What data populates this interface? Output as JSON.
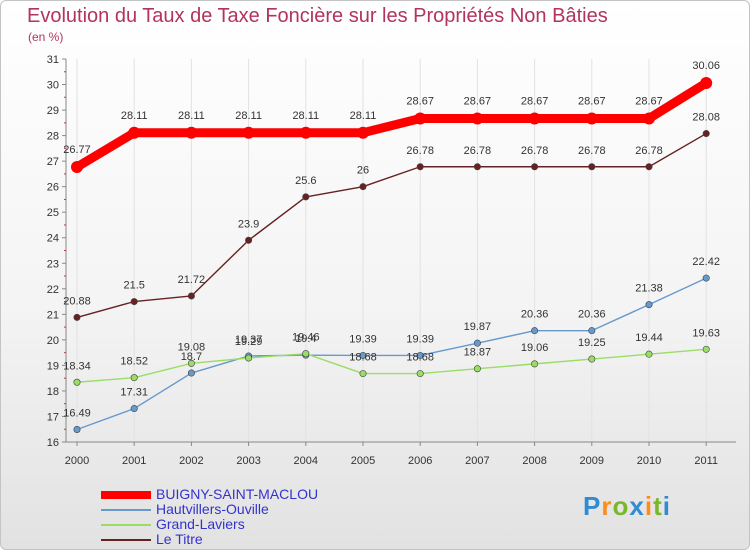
{
  "header": {
    "title": "Evolution du Taux de Taxe Foncière sur les Propriétés Non Bâties",
    "unit_label": "(en %)"
  },
  "logo": {
    "text": "Proxiti",
    "letters": [
      {
        "ch": "P",
        "color": "#2e8bd4"
      },
      {
        "ch": "r",
        "color": "#ff8c1a"
      },
      {
        "ch": "o",
        "color": "#7ab829"
      },
      {
        "ch": "x",
        "color": "#2e8bd4"
      },
      {
        "ch": "i",
        "color": "#ff8c1a"
      },
      {
        "ch": "t",
        "color": "#7ab829"
      },
      {
        "ch": "i",
        "color": "#2e8bd4"
      }
    ]
  },
  "chart_data": {
    "type": "line",
    "x": [
      2000,
      2001,
      2002,
      2003,
      2004,
      2005,
      2006,
      2007,
      2008,
      2009,
      2010,
      2011
    ],
    "ylim": [
      16,
      31
    ],
    "yticks": [
      16,
      17,
      18,
      19,
      20,
      21,
      22,
      23,
      24,
      25,
      26,
      27,
      28,
      29,
      30,
      31
    ],
    "grid": "vertical",
    "legend_position": "bottom-left",
    "series": [
      {
        "name": "BUIGNY-SAINT-MACLOU",
        "color": "#ff0000",
        "values": [
          26.77,
          28.11,
          28.11,
          28.11,
          28.11,
          28.11,
          28.67,
          28.67,
          28.67,
          28.67,
          28.67,
          30.06
        ],
        "labels": [
          "26.77",
          "28.11",
          "28.11",
          "28.11",
          "28.11",
          "28.11",
          "28.67",
          "28.67",
          "28.67",
          "28.67",
          "28.67",
          "30.06"
        ]
      },
      {
        "name": "Hautvillers-Ouville",
        "color": "#6699cc",
        "values": [
          16.49,
          17.31,
          18.7,
          19.37,
          19.4,
          19.39,
          19.39,
          19.87,
          20.36,
          20.36,
          21.38,
          22.42
        ],
        "labels": [
          "16.49",
          "17.31",
          "18.7",
          "19.37",
          "19.4",
          "19.39",
          "19.39",
          "19.87",
          "20.36",
          "20.36",
          "21.38",
          "22.42"
        ]
      },
      {
        "name": "Grand-Laviers",
        "color": "#99dd66",
        "values": [
          18.34,
          18.52,
          19.08,
          19.29,
          19.46,
          18.68,
          18.68,
          18.87,
          19.06,
          19.25,
          19.44,
          19.63
        ],
        "labels": [
          "18.34",
          "18.52",
          "19.08",
          "19.29",
          "19.46",
          "18.68",
          "18.68",
          "18.87",
          "19.06",
          "19.25",
          "19.44",
          "19.63"
        ]
      },
      {
        "name": "Le Titre",
        "color": "#662222",
        "values": [
          20.88,
          21.5,
          21.72,
          23.9,
          25.6,
          26.0,
          26.78,
          26.78,
          26.78,
          26.78,
          26.78,
          28.08
        ],
        "labels": [
          "20.88",
          "21.5",
          "21.72",
          "23.9",
          "25.6",
          "26",
          "26.78",
          "26.78",
          "26.78",
          "26.78",
          "26.78",
          "28.08"
        ]
      }
    ]
  }
}
